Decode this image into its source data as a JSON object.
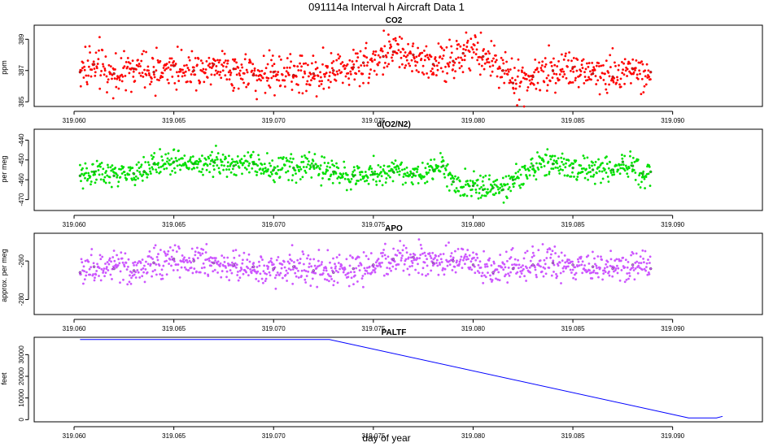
{
  "figure": {
    "title": "091114a   Interval h Aircraft Data 1",
    "xlabel": "day of year"
  },
  "colors": {
    "co2": "#ff0000",
    "o2n2": "#00e000",
    "apo": "#cc55ff",
    "paltf": "#0000ff"
  },
  "chart_data": [
    {
      "type": "scatter",
      "title": "CO2",
      "ylabel": "ppm",
      "xlim": [
        319.058,
        319.0945
      ],
      "ylim": [
        384.7,
        389.9
      ],
      "xticks": [
        "319.060",
        "319.065",
        "319.070",
        "319.075",
        "319.080",
        "319.085",
        "319.090"
      ],
      "yticks": [
        "385",
        "387",
        "389"
      ],
      "series": [
        {
          "name": "CO2",
          "x": [
            319.0603,
            319.061,
            319.062,
            319.063,
            319.064,
            319.065,
            319.066,
            319.067,
            319.068,
            319.069,
            319.07,
            319.071,
            319.072,
            319.073,
            319.074,
            319.0745,
            319.0755,
            319.076,
            319.077,
            319.078,
            319.079,
            319.0795,
            319.0805,
            319.0815,
            319.082,
            319.083,
            319.084,
            319.085,
            319.086,
            319.087,
            319.088,
            319.0889
          ],
          "values": [
            386.9,
            387.4,
            386.8,
            387.1,
            386.9,
            387.3,
            387.0,
            387.4,
            387.1,
            386.7,
            386.9,
            386.7,
            386.8,
            387.0,
            387.2,
            387.5,
            387.9,
            388.2,
            388.0,
            387.4,
            387.6,
            388.1,
            387.9,
            387.0,
            386.2,
            386.6,
            387.0,
            387.2,
            386.8,
            386.6,
            387.1,
            386.9
          ]
        }
      ]
    },
    {
      "type": "scatter",
      "title": "d(O2/N2)",
      "ylabel": "per meg",
      "xlim": [
        319.058,
        319.0945
      ],
      "ylim": [
        -475.5,
        -434.5
      ],
      "xticks": [
        "319.060",
        "319.065",
        "319.070",
        "319.075",
        "319.080",
        "319.085",
        "319.090"
      ],
      "yticks": [
        "-440",
        "-450",
        "-460",
        "-470"
      ],
      "series": [
        {
          "name": "d(O2/N2)",
          "x": [
            319.0603,
            319.061,
            319.062,
            319.063,
            319.0635,
            319.064,
            319.065,
            319.066,
            319.067,
            319.068,
            319.069,
            319.07,
            319.071,
            319.072,
            319.073,
            319.074,
            319.075,
            319.076,
            319.077,
            319.078,
            319.0785,
            319.079,
            319.08,
            319.0805,
            319.081,
            319.0815,
            319.082,
            319.083,
            319.084,
            319.085,
            319.086,
            319.087,
            319.0875,
            319.088,
            319.0885,
            319.0889
          ],
          "values": [
            -458,
            -456,
            -458,
            -457,
            -456,
            -452,
            -451,
            -452,
            -451,
            -453,
            -452,
            -455,
            -454,
            -453,
            -456,
            -458,
            -457,
            -456,
            -457,
            -455,
            -453,
            -461,
            -463,
            -465,
            -464,
            -465,
            -460,
            -453,
            -452,
            -454,
            -455,
            -455,
            -451,
            -453,
            -457,
            -456
          ]
        }
      ]
    },
    {
      "type": "scatter",
      "title": "APO",
      "ylabel": "approx. per meg",
      "xlim": [
        319.058,
        319.0945
      ],
      "ylim": [
        -287.8,
        -245.6
      ],
      "xticks": [
        "319.060",
        "319.065",
        "319.070",
        "319.075",
        "319.080",
        "319.085",
        "319.090"
      ],
      "yticks": [
        "-260",
        "-280"
      ],
      "series": [
        {
          "name": "APO",
          "x": [
            319.0603,
            319.061,
            319.062,
            319.063,
            319.064,
            319.065,
            319.066,
            319.067,
            319.068,
            319.069,
            319.07,
            319.071,
            319.072,
            319.073,
            319.074,
            319.075,
            319.076,
            319.077,
            319.078,
            319.079,
            319.08,
            319.081,
            319.082,
            319.083,
            319.084,
            319.085,
            319.086,
            319.087,
            319.088,
            319.0889
          ],
          "values": [
            -266,
            -263,
            -264,
            -265,
            -261,
            -259,
            -260,
            -261,
            -262,
            -263,
            -264,
            -263,
            -265,
            -266,
            -264,
            -262,
            -259,
            -258,
            -261,
            -260,
            -262,
            -266,
            -264,
            -262,
            -261,
            -262,
            -263,
            -264,
            -262,
            -264
          ]
        }
      ]
    },
    {
      "type": "line",
      "title": "PALTF",
      "ylabel": "feet",
      "xlim": [
        319.058,
        319.0945
      ],
      "ylim": [
        -1000,
        38000
      ],
      "xticks": [
        "319.060",
        "319.065",
        "319.070",
        "319.075",
        "319.080",
        "319.085",
        "319.090"
      ],
      "yticks": [
        "0",
        "10000",
        "20000",
        "30000"
      ],
      "series": [
        {
          "name": "PALTF",
          "x": [
            319.0603,
            319.0728,
            319.0908,
            319.0922,
            319.0925
          ],
          "values": [
            37000,
            37000,
            800,
            800,
            1500
          ]
        }
      ]
    }
  ]
}
